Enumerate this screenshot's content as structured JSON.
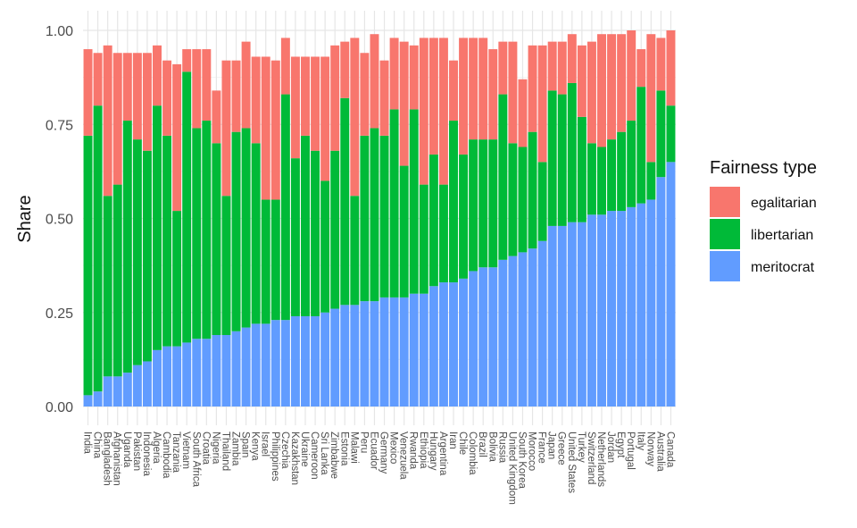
{
  "chart_data": {
    "type": "bar",
    "stacked": true,
    "ylabel": "Share",
    "xlabel": "",
    "ylim": [
      0,
      1
    ],
    "yticks": [
      "0.00",
      "0.25",
      "0.50",
      "0.75",
      "1.00"
    ],
    "grid": true,
    "legend_title": "Fairness type",
    "legend_position": "right",
    "categories": [
      "India",
      "China",
      "Bangladesh",
      "Afghanistan",
      "Uganda",
      "Pakistan",
      "Indonesia",
      "Algeria",
      "Cambodia",
      "Tanzania",
      "Vietnam",
      "South Africa",
      "Croatia",
      "Nigeria",
      "Thailand",
      "Zambia",
      "Spain",
      "Kenya",
      "Israel",
      "Philippines",
      "Czechia",
      "Kazakhstan",
      "Ukraine",
      "Cameroon",
      "Sri Lanka",
      "Zimbabwe",
      "Estonia",
      "Malawi",
      "Peru",
      "Ecuador",
      "Germany",
      "Mexico",
      "Venezuela",
      "Rwanda",
      "Ethiopia",
      "Hungary",
      "Argentina",
      "Iran",
      "Chile",
      "Colombia",
      "Brazil",
      "Bolivia",
      "Russia",
      "United Kingdom",
      "South Korea",
      "Morocco",
      "France",
      "Japan",
      "Greece",
      "United States",
      "Turkey",
      "Switzerland",
      "Netherlands",
      "Jordan",
      "Egypt",
      "Portugal",
      "Italy",
      "Norway",
      "Australia",
      "Canada"
    ],
    "series": [
      {
        "name": "meritocrat",
        "color": "#619CFF",
        "values": [
          0.03,
          0.04,
          0.08,
          0.08,
          0.09,
          0.11,
          0.12,
          0.15,
          0.16,
          0.16,
          0.17,
          0.18,
          0.18,
          0.19,
          0.19,
          0.2,
          0.21,
          0.22,
          0.22,
          0.23,
          0.23,
          0.24,
          0.24,
          0.24,
          0.25,
          0.26,
          0.27,
          0.27,
          0.28,
          0.28,
          0.29,
          0.29,
          0.29,
          0.3,
          0.3,
          0.32,
          0.33,
          0.33,
          0.34,
          0.36,
          0.37,
          0.37,
          0.39,
          0.4,
          0.41,
          0.42,
          0.44,
          0.48,
          0.48,
          0.49,
          0.49,
          0.51,
          0.51,
          0.52,
          0.52,
          0.53,
          0.54,
          0.55,
          0.61,
          0.65
        ]
      },
      {
        "name": "libertarian",
        "color": "#00BA38",
        "values": [
          0.69,
          0.76,
          0.48,
          0.51,
          0.67,
          0.6,
          0.56,
          0.65,
          0.56,
          0.36,
          0.72,
          0.56,
          0.58,
          0.51,
          0.37,
          0.53,
          0.53,
          0.48,
          0.33,
          0.32,
          0.6,
          0.42,
          0.48,
          0.44,
          0.35,
          0.42,
          0.55,
          0.29,
          0.44,
          0.46,
          0.43,
          0.5,
          0.35,
          0.49,
          0.29,
          0.35,
          0.26,
          0.43,
          0.33,
          0.35,
          0.34,
          0.34,
          0.44,
          0.3,
          0.28,
          0.31,
          0.21,
          0.36,
          0.35,
          0.37,
          0.28,
          0.19,
          0.18,
          0.19,
          0.21,
          0.23,
          0.31,
          0.1,
          0.23,
          0.15
        ]
      },
      {
        "name": "egalitarian",
        "color": "#F8766D",
        "values": [
          0.23,
          0.14,
          0.4,
          0.35,
          0.18,
          0.23,
          0.26,
          0.16,
          0.2,
          0.39,
          0.06,
          0.21,
          0.19,
          0.14,
          0.36,
          0.19,
          0.23,
          0.23,
          0.38,
          0.37,
          0.15,
          0.27,
          0.21,
          0.25,
          0.33,
          0.28,
          0.15,
          0.42,
          0.22,
          0.25,
          0.2,
          0.19,
          0.33,
          0.17,
          0.39,
          0.31,
          0.39,
          0.16,
          0.31,
          0.27,
          0.27,
          0.24,
          0.14,
          0.27,
          0.18,
          0.23,
          0.31,
          0.13,
          0.14,
          0.13,
          0.19,
          0.27,
          0.3,
          0.28,
          0.26,
          0.24,
          0.1,
          0.34,
          0.14,
          0.2
        ]
      }
    ]
  }
}
